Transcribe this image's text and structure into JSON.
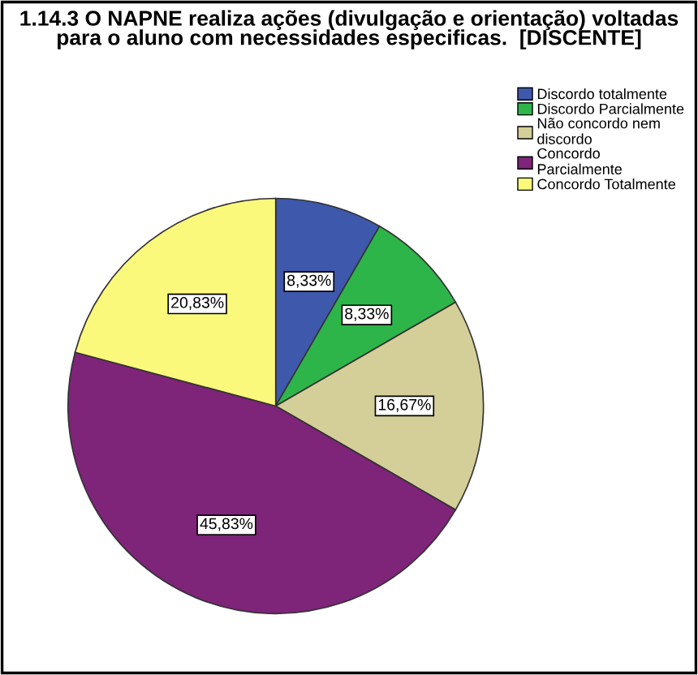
{
  "chart_data": {
    "type": "pie",
    "title": "1.14.3 O NAPNE realiza ações (divulgação e orientação) voltadas\npara o aluno com necessidades especificas.  [DISCENTE]",
    "categories": [
      "Discordo totalmente",
      "Discordo Parcialmente",
      "Não concordo nem\ndiscordo",
      "Concordo\nParcialmente",
      "Concordo Totalmente"
    ],
    "values": [
      8.33,
      8.33,
      16.67,
      45.83,
      20.83
    ],
    "value_labels": [
      "8,33%",
      "8,33%",
      "16,67%",
      "45,83%",
      "20,83%"
    ],
    "colors": [
      "#3e58ac",
      "#2db54a",
      "#d4cf98",
      "#7e2479",
      "#fbf97b"
    ],
    "legend": "top right"
  }
}
